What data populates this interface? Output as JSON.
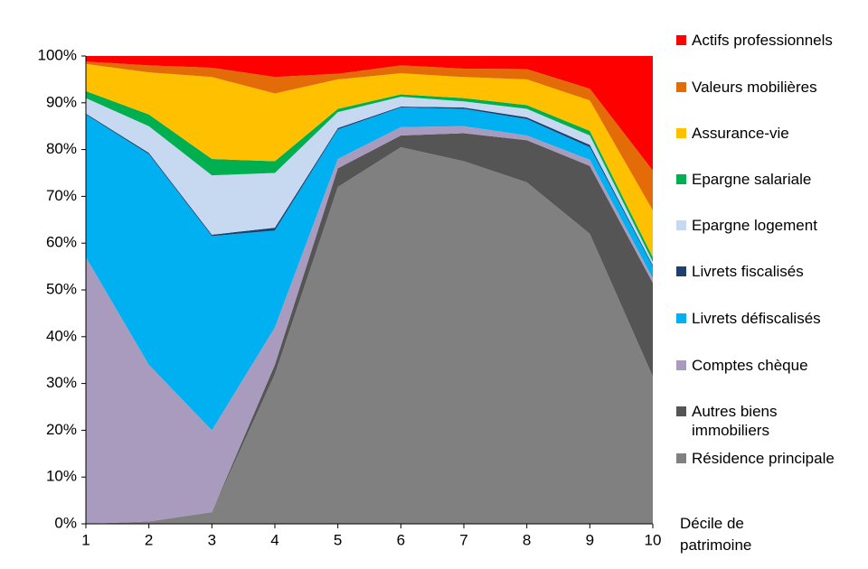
{
  "chart_data": {
    "type": "stacked_area",
    "x_label": "Décile de patrimoine",
    "x": [
      1,
      2,
      3,
      4,
      5,
      6,
      7,
      8,
      9,
      10
    ],
    "xlim": [
      1,
      10
    ],
    "xticks": [
      1,
      2,
      3,
      4,
      5,
      6,
      7,
      8,
      9,
      10
    ],
    "ylim": [
      0,
      100
    ],
    "yticks": [
      {
        "value": 0,
        "label": "0%"
      },
      {
        "value": 10,
        "label": "10%"
      },
      {
        "value": 20,
        "label": "20%"
      },
      {
        "value": 30,
        "label": "30%"
      },
      {
        "value": 40,
        "label": "40%"
      },
      {
        "value": 50,
        "label": "50%"
      },
      {
        "value": 60,
        "label": "60%"
      },
      {
        "value": 70,
        "label": "70%"
      },
      {
        "value": 80,
        "label": "80%"
      },
      {
        "value": 90,
        "label": "90%"
      },
      {
        "value": 100,
        "label": "100%"
      }
    ],
    "grid": false,
    "series": [
      {
        "name": "Résidence principale",
        "color": "#808080",
        "values": [
          0,
          0.5,
          2.5,
          32,
          72,
          80.5,
          77.5,
          73,
          62,
          31.5
        ]
      },
      {
        "name": "Autres biens immobiliers",
        "color": "#555555",
        "values": [
          0,
          0,
          0,
          2,
          4,
          2.5,
          6,
          9,
          14.5,
          20
        ]
      },
      {
        "name": "Comptes chèque",
        "color": "#a99bbd",
        "values": [
          57,
          33.5,
          17.5,
          8,
          2,
          1.8,
          1.5,
          1,
          1.3,
          1
        ]
      },
      {
        "name": "Livrets défiscalisés",
        "color": "#00b0f0",
        "values": [
          30.5,
          45,
          41.5,
          20.7,
          6.3,
          4.2,
          3.7,
          3.5,
          2.7,
          2.5
        ]
      },
      {
        "name": "Livrets fiscalisés",
        "color": "#1f3f6e",
        "values": [
          0.2,
          0.3,
          0.3,
          0.6,
          0.3,
          0.2,
          0.3,
          0.4,
          0.5,
          0.3
        ]
      },
      {
        "name": "Epargne logement",
        "color": "#c6d9f1",
        "values": [
          3.3,
          5.7,
          12.7,
          11.7,
          3.4,
          2.1,
          1.3,
          1.8,
          2,
          0.7
        ]
      },
      {
        "name": "Epargne salariale",
        "color": "#00b050",
        "values": [
          1.5,
          2.5,
          3.5,
          2.5,
          0.7,
          0.5,
          0.7,
          0.8,
          1,
          1
        ]
      },
      {
        "name": "Assurance-vie",
        "color": "#ffc000",
        "values": [
          5.8,
          9,
          17.5,
          14.5,
          6.3,
          4.5,
          4.5,
          5.5,
          6.5,
          10
        ]
      },
      {
        "name": "Valeurs mobilières",
        "color": "#e36c09",
        "values": [
          0.5,
          1.5,
          2,
          3.5,
          1.2,
          1.7,
          1.8,
          2.2,
          2.5,
          8.5
        ]
      },
      {
        "name": "Actifs professionnels",
        "color": "#ff0000",
        "values": [
          1.2,
          2,
          2.5,
          4.5,
          3.8,
          2,
          2.7,
          2.8,
          7,
          24.5
        ]
      }
    ]
  }
}
